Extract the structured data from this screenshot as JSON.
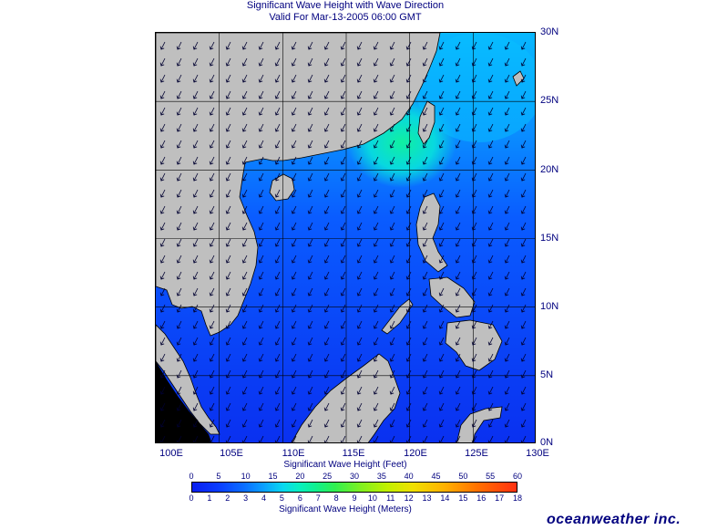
{
  "header": {
    "title": "Significant Wave Height with Wave Direction",
    "valid": "Valid For Mar-13-2005 06:00 GMT"
  },
  "map": {
    "lon_labels": [
      "100E",
      "105E",
      "110E",
      "115E",
      "120E",
      "125E",
      "130E"
    ],
    "lat_labels": [
      "30N",
      "25N",
      "20N",
      "15N",
      "10N",
      "5N",
      "0N"
    ],
    "colors": {
      "land": "#bfbfbf",
      "coast": "#000000",
      "grid": "#000000",
      "arrow": "#000040"
    },
    "prevailing_wind": "northeast"
  },
  "colorbar": {
    "feet_caption": "Significant Wave Height (Feet)",
    "meters_caption": "Significant Wave Height (Meters)",
    "feet_ticks": [
      "0",
      "5",
      "10",
      "15",
      "20",
      "25",
      "30",
      "35",
      "40",
      "45",
      "50",
      "55",
      "60"
    ],
    "meter_ticks": [
      "0",
      "1",
      "2",
      "3",
      "4",
      "5",
      "6",
      "7",
      "8",
      "9",
      "10",
      "11",
      "12",
      "13",
      "14",
      "15",
      "16",
      "17",
      "18"
    ]
  },
  "brand": "oceanweather inc."
}
